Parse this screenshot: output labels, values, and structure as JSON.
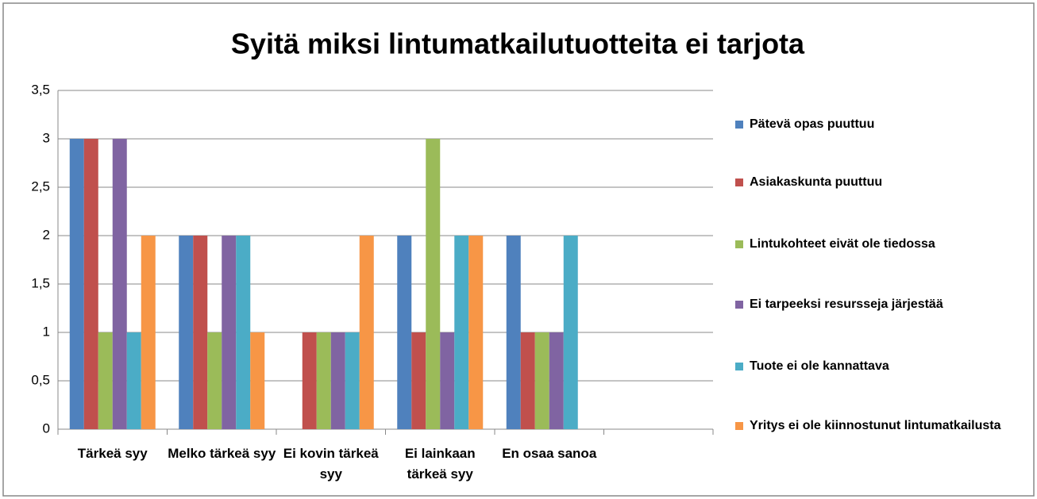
{
  "chart_data": {
    "type": "bar",
    "title": "Syitä miksi lintumatkailutuotteita ei tarjota",
    "categories": [
      "Tärkeä syy",
      "Melko tärkeä syy",
      "Ei kovin tärkeä syy",
      "Ei lainkaan tärkeä syy",
      "En osaa sanoa",
      null
    ],
    "series": [
      {
        "name": "Pätevä opas puuttuu",
        "color": "#4f81bd",
        "values": [
          3,
          2,
          0,
          2,
          2,
          null
        ]
      },
      {
        "name": "Asiakaskunta puuttuu",
        "color": "#c0504d",
        "values": [
          3,
          2,
          1,
          1,
          1,
          null
        ]
      },
      {
        "name": "Lintukohteet eivät ole tiedossa",
        "color": "#9bbb59",
        "values": [
          1,
          1,
          1,
          3,
          1,
          null
        ]
      },
      {
        "name": "Ei tarpeeksi resursseja järjestää",
        "color": "#8064a2",
        "values": [
          3,
          2,
          1,
          1,
          1,
          null
        ]
      },
      {
        "name": "Tuote ei ole kannattava",
        "color": "#4bacc6",
        "values": [
          1,
          2,
          1,
          2,
          2,
          null
        ]
      },
      {
        "name": "Yritys ei ole kiinnostunut lintumatkailusta",
        "color": "#f79646",
        "values": [
          2,
          1,
          2,
          2,
          0,
          null
        ]
      }
    ],
    "ylim": [
      0,
      3.5
    ],
    "yticks": [
      0,
      {
        "value": 0.5,
        "label": "0,5"
      },
      1,
      {
        "value": 1.5,
        "label": "1,5"
      },
      2,
      {
        "value": 2.5,
        "label": "2,5"
      },
      3,
      {
        "value": 3.5,
        "label": "3,5"
      }
    ],
    "grid": true,
    "legend": "right"
  }
}
